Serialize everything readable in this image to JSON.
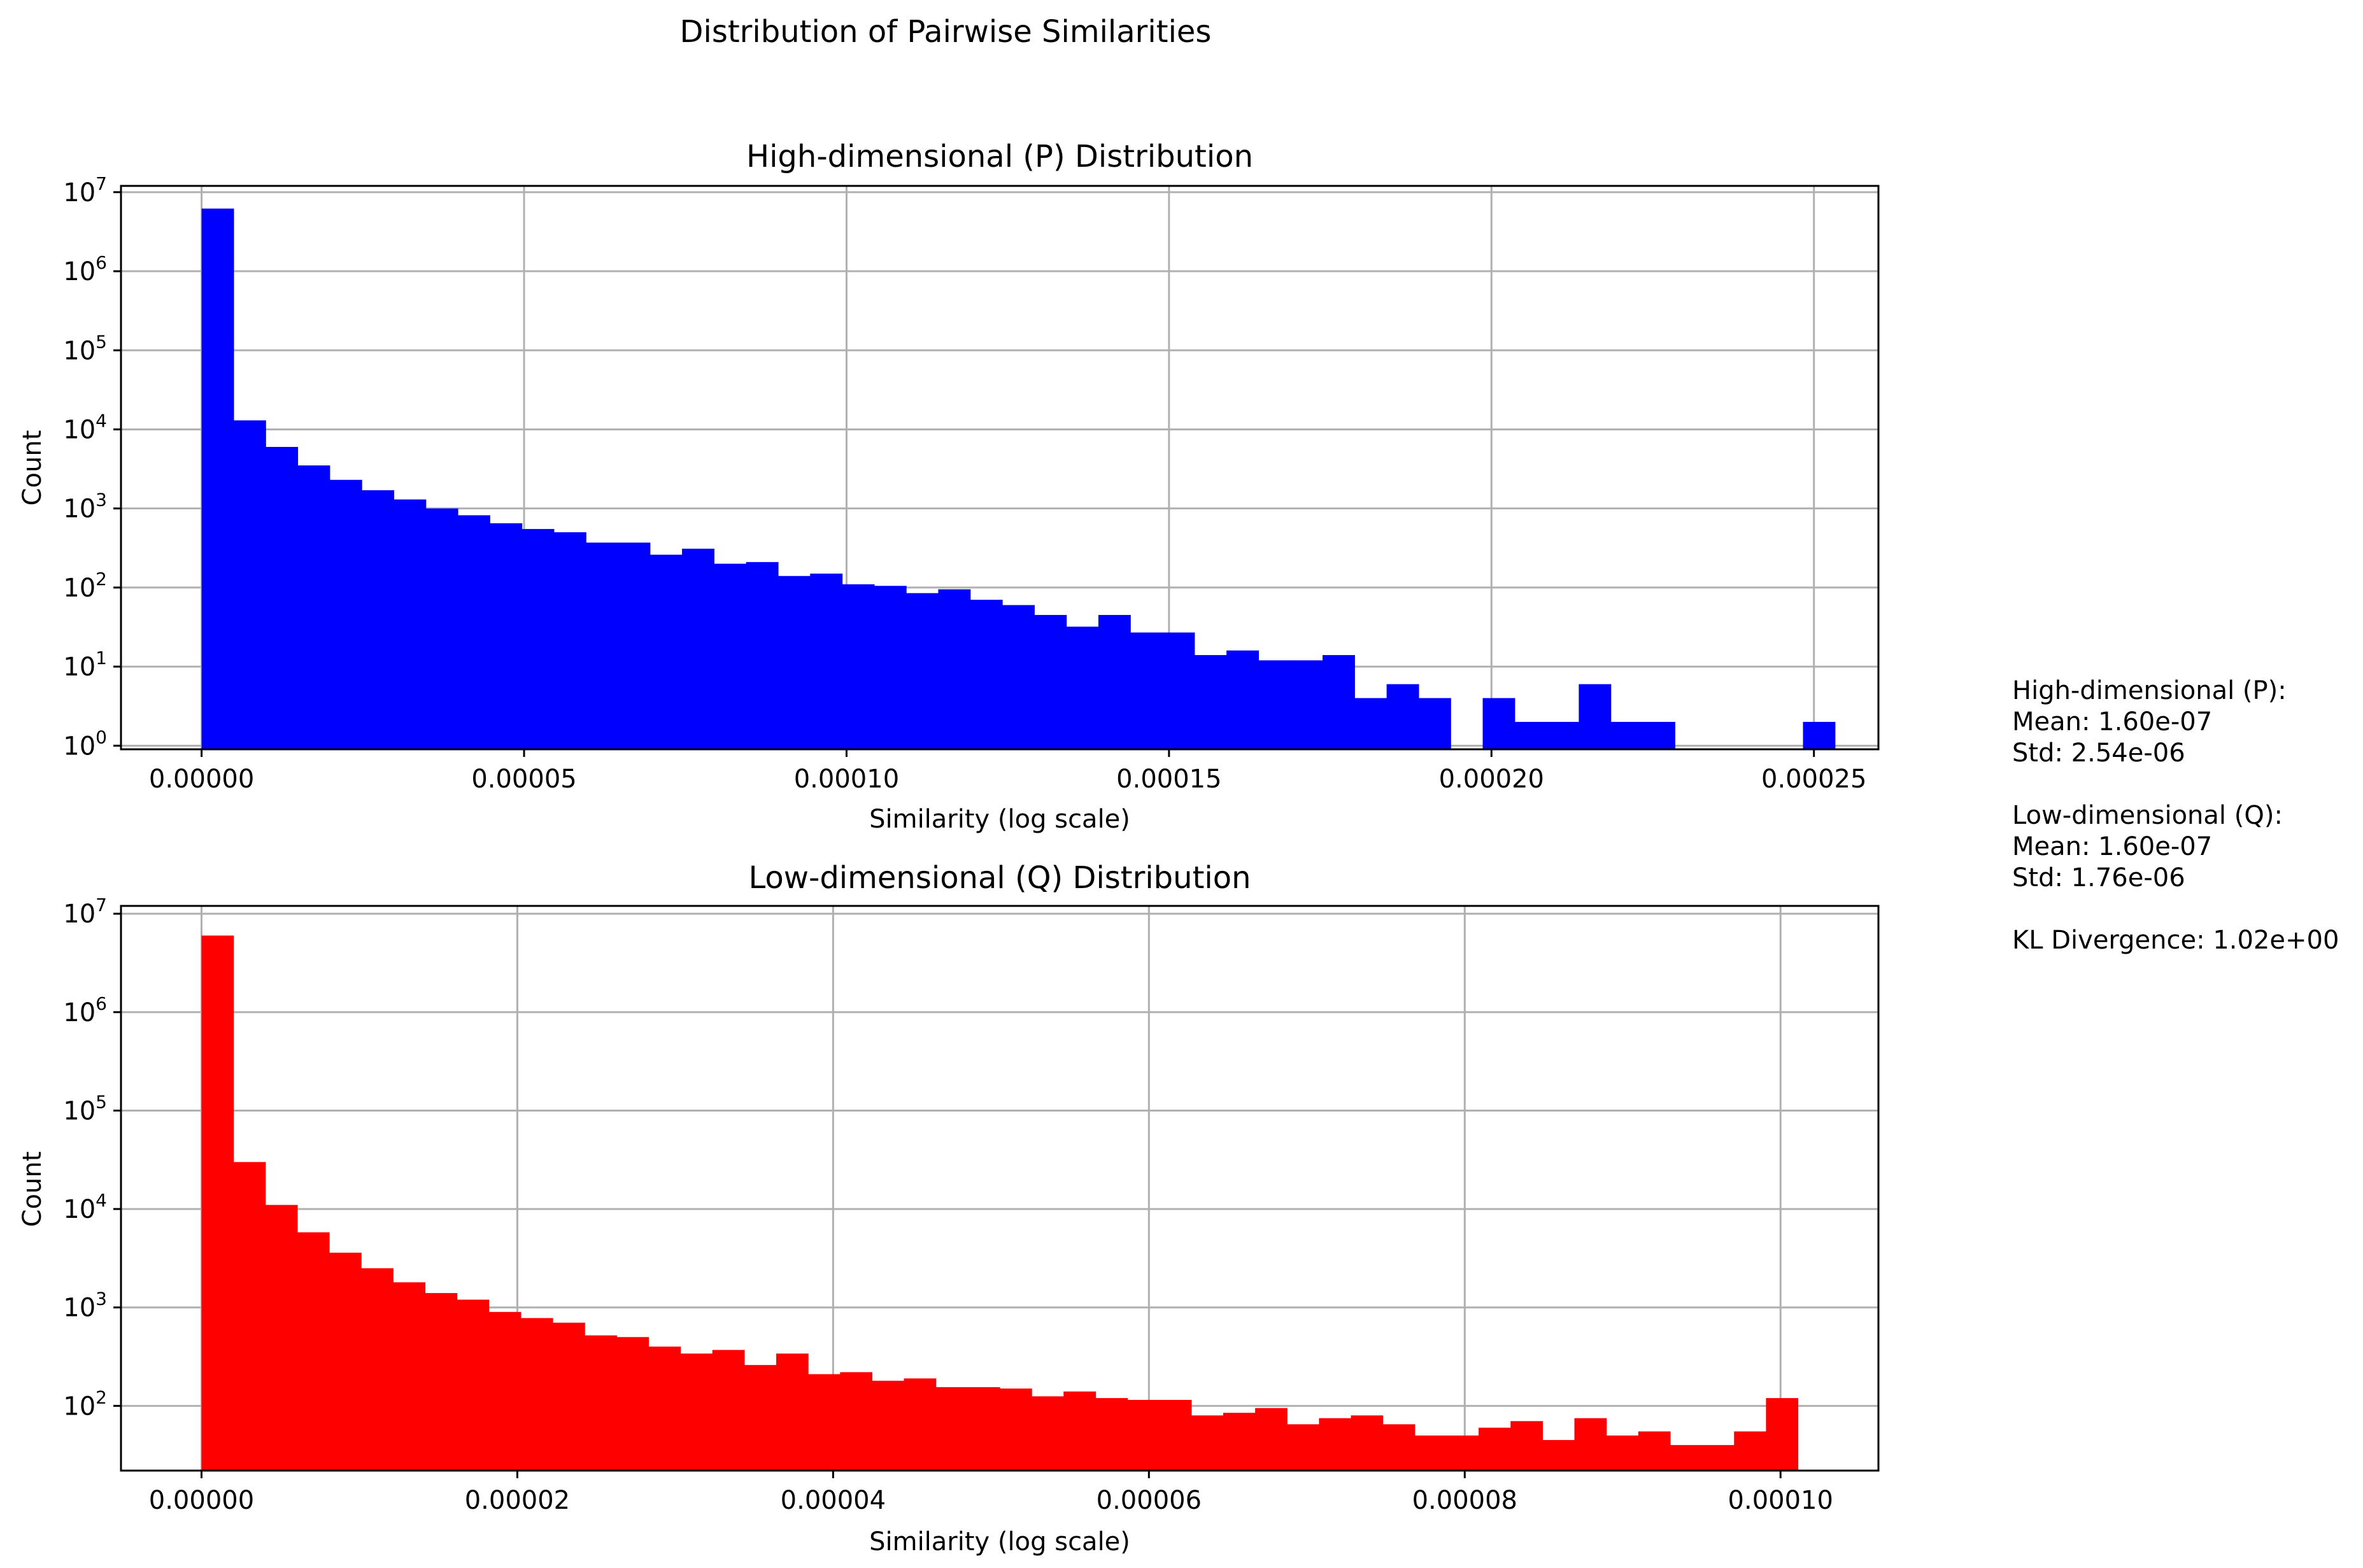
{
  "figure": {
    "suptitle": "Distribution of Pairwise Similarities",
    "stats_text": [
      "High-dimensional (P):",
      "Mean: 1.60e-07",
      "Std: 2.54e-06",
      "",
      "Low-dimensional (Q):",
      "Mean: 1.60e-07",
      "Std: 1.76e-06",
      "",
      "KL Divergence: 1.02e+00"
    ]
  },
  "chart_data": [
    {
      "type": "bar",
      "title": "High-dimensional (P) Distribution",
      "xlabel": "Similarity (log scale)",
      "ylabel": "Count",
      "yscale": "log",
      "grid": true,
      "color": "#0000ff",
      "xlim": [
        -1.25e-05,
        0.00026
      ],
      "ylim": [
        0.9,
        12000000
      ],
      "xticks": [
        0,
        5e-05,
        0.0001,
        0.00015,
        0.0002,
        0.00025
      ],
      "xtick_labels": [
        "0.00000",
        "0.00005",
        "0.00010",
        "0.00015",
        "0.00020",
        "0.00025"
      ],
      "yticks": [
        1,
        10,
        100,
        1000,
        10000,
        100000,
        1000000,
        10000000
      ],
      "ytick_exponents": [
        "0",
        "1",
        "2",
        "3",
        "4",
        "5",
        "6",
        "7"
      ],
      "bin_start": 0,
      "bin_width": 4.966e-06,
      "values": [
        6200000,
        13000,
        6000,
        3500,
        2300,
        1700,
        1300,
        1000,
        820,
        650,
        550,
        500,
        370,
        370,
        260,
        310,
        200,
        210,
        140,
        150,
        110,
        105,
        85,
        95,
        70,
        60,
        45,
        32,
        45,
        27,
        27,
        14,
        16,
        12,
        12,
        14,
        4,
        6,
        4,
        0,
        4,
        2,
        2,
        6,
        2,
        2,
        0,
        0,
        0,
        0,
        2
      ]
    },
    {
      "type": "bar",
      "title": "Low-dimensional (Q) Distribution",
      "xlabel": "Similarity (log scale)",
      "ylabel": "Count",
      "yscale": "log",
      "grid": true,
      "color": "#ff0000",
      "xlim": [
        -5.1e-06,
        0.0001062
      ],
      "ylim": [
        22,
        12000000
      ],
      "xticks": [
        0,
        2e-05,
        4e-05,
        6e-05,
        8e-05,
        0.0001
      ],
      "xtick_labels": [
        "0.00000",
        "0.00002",
        "0.00004",
        "0.00006",
        "0.00008",
        "0.00010"
      ],
      "yticks": [
        100,
        1000,
        10000,
        100000,
        1000000,
        10000000
      ],
      "ytick_exponents": [
        "2",
        "3",
        "4",
        "5",
        "6",
        "7"
      ],
      "bin_start": 0,
      "bin_width": 2.022e-06,
      "values": [
        6000000,
        30000,
        11000,
        5800,
        3600,
        2500,
        1800,
        1400,
        1200,
        900,
        780,
        700,
        520,
        500,
        400,
        340,
        370,
        260,
        340,
        210,
        220,
        180,
        190,
        155,
        155,
        150,
        125,
        140,
        120,
        115,
        115,
        80,
        85,
        95,
        65,
        75,
        80,
        65,
        50,
        50,
        60,
        70,
        45,
        75,
        50,
        55,
        40,
        40,
        55,
        120
      ]
    }
  ]
}
